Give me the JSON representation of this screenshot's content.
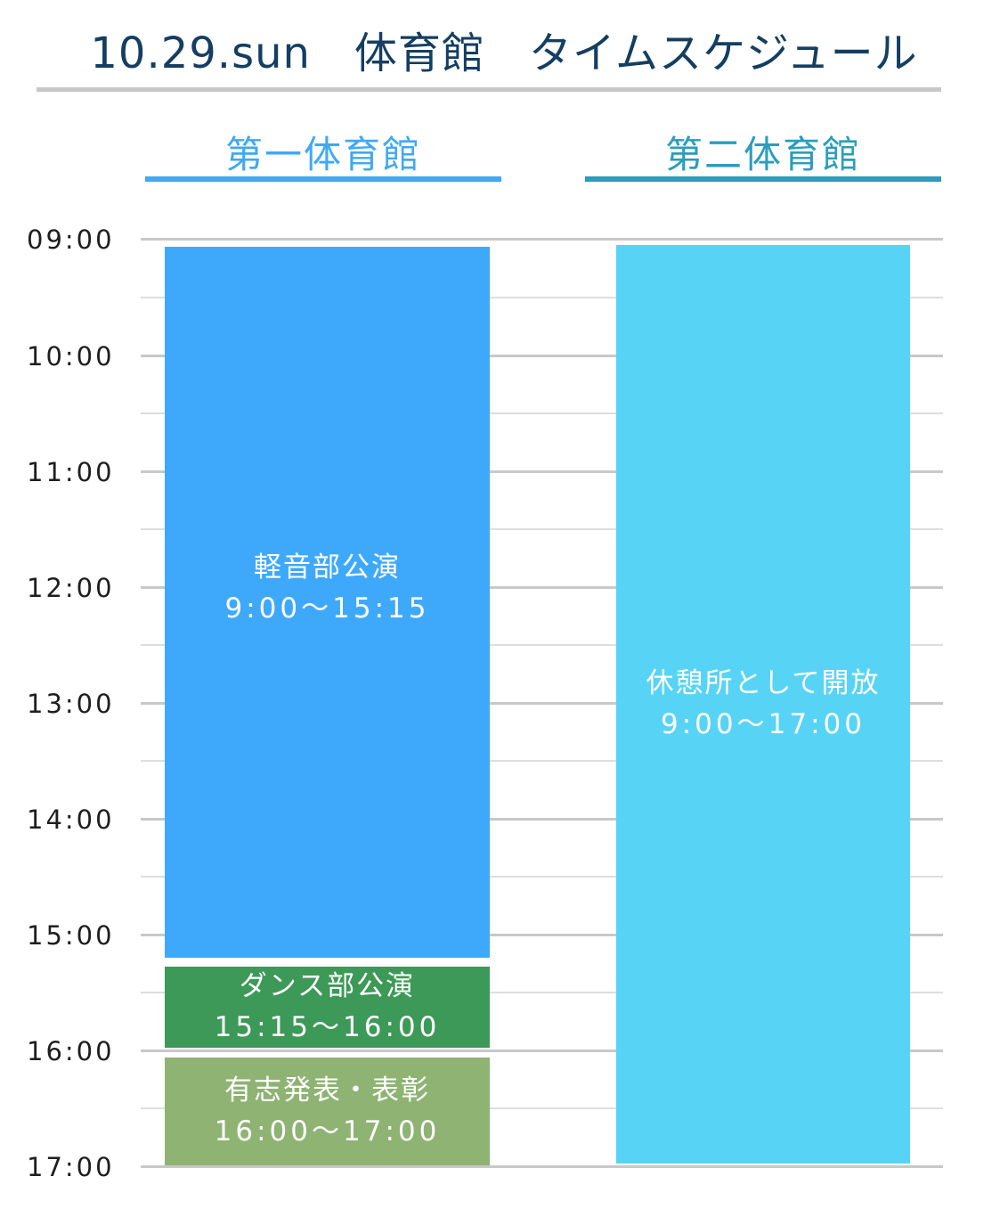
{
  "title": "10.29.sun　体育館　タイムスケジュール",
  "venues": [
    {
      "name": "第一体育館",
      "color": "#3fa9f5"
    },
    {
      "name": "第二体育館",
      "color": "#2a9dbd"
    }
  ],
  "time_axis": [
    "09:00",
    "10:00",
    "11:00",
    "12:00",
    "13:00",
    "14:00",
    "15:00",
    "16:00",
    "17:00"
  ],
  "events": {
    "music": {
      "name": "軽音部公演",
      "time": "9:00〜15:15",
      "color": "#3ea9fb"
    },
    "dance": {
      "name": "ダンス部公演",
      "time": "15:15〜16:00",
      "color": "#3d9957"
    },
    "award": {
      "name": "有志発表・表彰",
      "time": "16:00〜17:00",
      "color": "#8eb373"
    },
    "rest": {
      "name": "休憩所として開放",
      "time": "9:00〜17:00",
      "color": "#57d4f5"
    }
  }
}
